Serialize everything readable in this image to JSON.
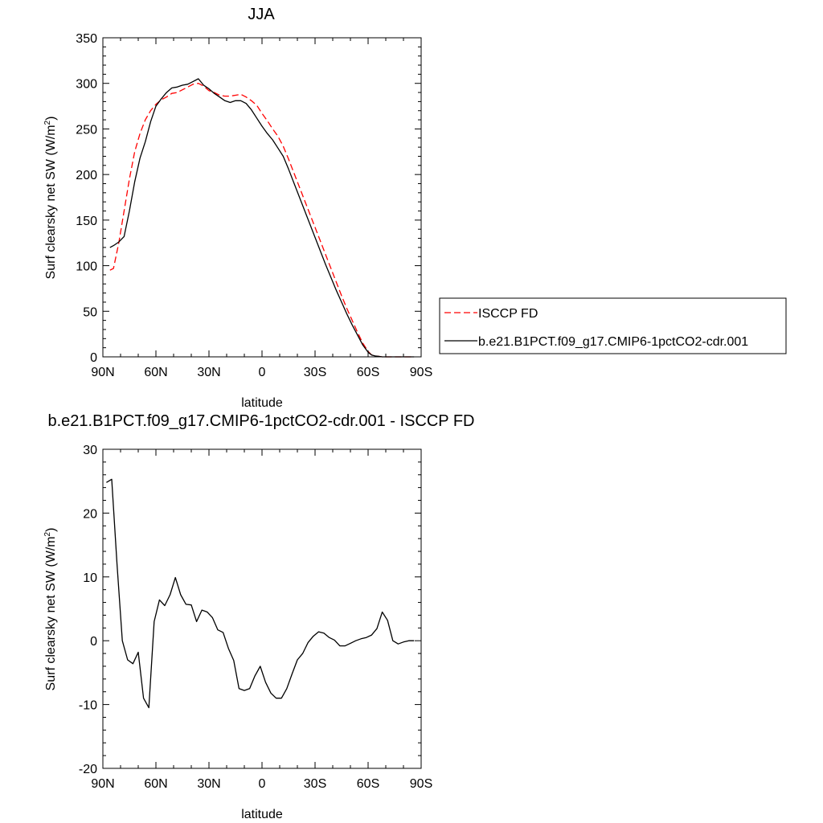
{
  "chart_data": [
    {
      "type": "line",
      "title": "JJA",
      "xlabel": "latitude",
      "ylabel": "Surf clearsky net SW (W/m",
      "ylabel_sup": "2",
      "ylabel_tail": ")",
      "xlim": [
        90,
        -90
      ],
      "ylim": [
        0,
        350
      ],
      "x_ticks": [
        90,
        60,
        30,
        0,
        -30,
        -60,
        -90
      ],
      "x_tick_labels": [
        "90N",
        "60N",
        "30N",
        "0",
        "30S",
        "60S",
        "90S"
      ],
      "y_ticks": [
        0,
        50,
        100,
        150,
        200,
        250,
        300,
        350
      ],
      "y_tick_labels": [
        "0",
        "50",
        "100",
        "150",
        "200",
        "250",
        "300",
        "350"
      ],
      "grid": false,
      "legend_position": "right",
      "series": [
        {
          "name": "ISCCP FD",
          "color": "#ff0000",
          "dash": "dashed",
          "x": [
            86,
            84,
            81,
            78,
            75,
            72,
            69,
            66,
            63,
            60,
            57,
            54,
            51,
            48,
            45,
            42,
            39,
            36,
            33,
            30,
            27,
            24,
            21,
            18,
            15,
            12,
            9,
            6,
            3,
            0,
            -3,
            -6,
            -9,
            -12,
            -15,
            -18,
            -21,
            -24,
            -27,
            -30,
            -33,
            -36,
            -39,
            -42,
            -45,
            -48,
            -51,
            -54,
            -57,
            -60,
            -62,
            -64,
            -66,
            -68,
            -70,
            -72,
            -75,
            -78,
            -81,
            -84,
            -86
          ],
          "y": [
            95,
            97,
            125,
            160,
            195,
            225,
            245,
            260,
            270,
            277,
            282,
            285,
            289,
            290,
            293,
            296,
            299,
            300,
            297,
            292,
            290,
            287,
            286,
            286,
            287,
            288,
            285,
            281,
            276,
            267,
            259,
            250,
            242,
            231,
            217,
            202,
            187,
            172,
            157,
            142,
            127,
            112,
            97,
            82,
            67,
            53,
            40,
            27,
            15,
            6,
            2,
            1,
            0.5,
            0,
            0,
            0,
            0,
            0,
            0,
            0,
            0
          ]
        },
        {
          "name": "b.e21.B1PCT.f09_g17.CMIP6-1pctCO2-cdr.001",
          "color": "#000000",
          "dash": "solid",
          "x": [
            86,
            84,
            81,
            78,
            75,
            72,
            69,
            66,
            63,
            60,
            57,
            54,
            51,
            48,
            45,
            42,
            39,
            36,
            33,
            30,
            27,
            24,
            21,
            18,
            15,
            12,
            9,
            6,
            3,
            0,
            -3,
            -6,
            -9,
            -12,
            -15,
            -18,
            -21,
            -24,
            -27,
            -30,
            -33,
            -36,
            -39,
            -42,
            -45,
            -48,
            -51,
            -54,
            -57,
            -60,
            -62,
            -64,
            -66,
            -68,
            -70,
            -72,
            -75,
            -78,
            -81,
            -84,
            -86
          ],
          "y": [
            120,
            122,
            126,
            132,
            160,
            192,
            218,
            236,
            258,
            275,
            283,
            290,
            295,
            296,
            298,
            299,
            302,
            305,
            298,
            294,
            289,
            285,
            281,
            279,
            281,
            281,
            278,
            271,
            262,
            253,
            245,
            238,
            229,
            220,
            206,
            191,
            176,
            161,
            146,
            131,
            116,
            101,
            87,
            73,
            60,
            47,
            35,
            24,
            13,
            5,
            2,
            1,
            0.5,
            0,
            0,
            0,
            0,
            0,
            0,
            0,
            0
          ]
        }
      ]
    },
    {
      "type": "line",
      "title": "b.e21.B1PCT.f09_g17.CMIP6-1pctCO2-cdr.001 - ISCCP FD",
      "xlabel": "latitude",
      "ylabel": "Surf clearsky net SW (W/m",
      "ylabel_sup": "2",
      "ylabel_tail": ")",
      "xlim": [
        90,
        -90
      ],
      "ylim": [
        -20,
        30
      ],
      "x_ticks": [
        90,
        60,
        30,
        0,
        -30,
        -60,
        -90
      ],
      "x_tick_labels": [
        "90N",
        "60N",
        "30N",
        "0",
        "30S",
        "60S",
        "90S"
      ],
      "y_ticks": [
        -20,
        -10,
        0,
        10,
        20,
        30
      ],
      "y_tick_labels": [
        "-20",
        "-10",
        "0",
        "10",
        "20",
        "30"
      ],
      "grid": false,
      "series": [
        {
          "color": "#000000",
          "dash": "solid",
          "x": [
            88,
            85,
            82,
            79,
            76,
            73,
            70,
            67,
            64,
            61,
            58,
            55,
            52,
            49,
            46,
            43,
            40,
            37,
            34,
            31,
            28,
            25,
            22,
            19,
            16,
            13,
            10,
            7,
            4,
            1,
            -2,
            -5,
            -8,
            -11,
            -14,
            -17,
            -20,
            -23,
            -26,
            -29,
            -32,
            -35,
            -38,
            -41,
            -44,
            -47,
            -50,
            -53,
            -56,
            -59,
            -62,
            -65,
            -68,
            -71,
            -74,
            -77,
            -80,
            -83,
            -86
          ],
          "y": [
            24.8,
            25.3,
            12,
            0,
            -3,
            -3.6,
            -1.8,
            -9,
            -10.5,
            3,
            6.4,
            5.5,
            7.2,
            9.9,
            7.2,
            5.7,
            5.6,
            3,
            4.8,
            4.5,
            3.6,
            1.7,
            1.3,
            -1.2,
            -3.1,
            -7.5,
            -7.8,
            -7.5,
            -5.5,
            -4,
            -6.5,
            -8.2,
            -9,
            -9,
            -7.5,
            -5.2,
            -3,
            -2,
            -0.3,
            0.7,
            1.4,
            1.2,
            0.5,
            0.1,
            -0.8,
            -0.8,
            -0.4,
            0,
            0.3,
            0.5,
            0.9,
            1.9,
            4.5,
            3.2,
            0,
            -0.5,
            -0.2,
            0,
            0
          ]
        }
      ]
    }
  ]
}
